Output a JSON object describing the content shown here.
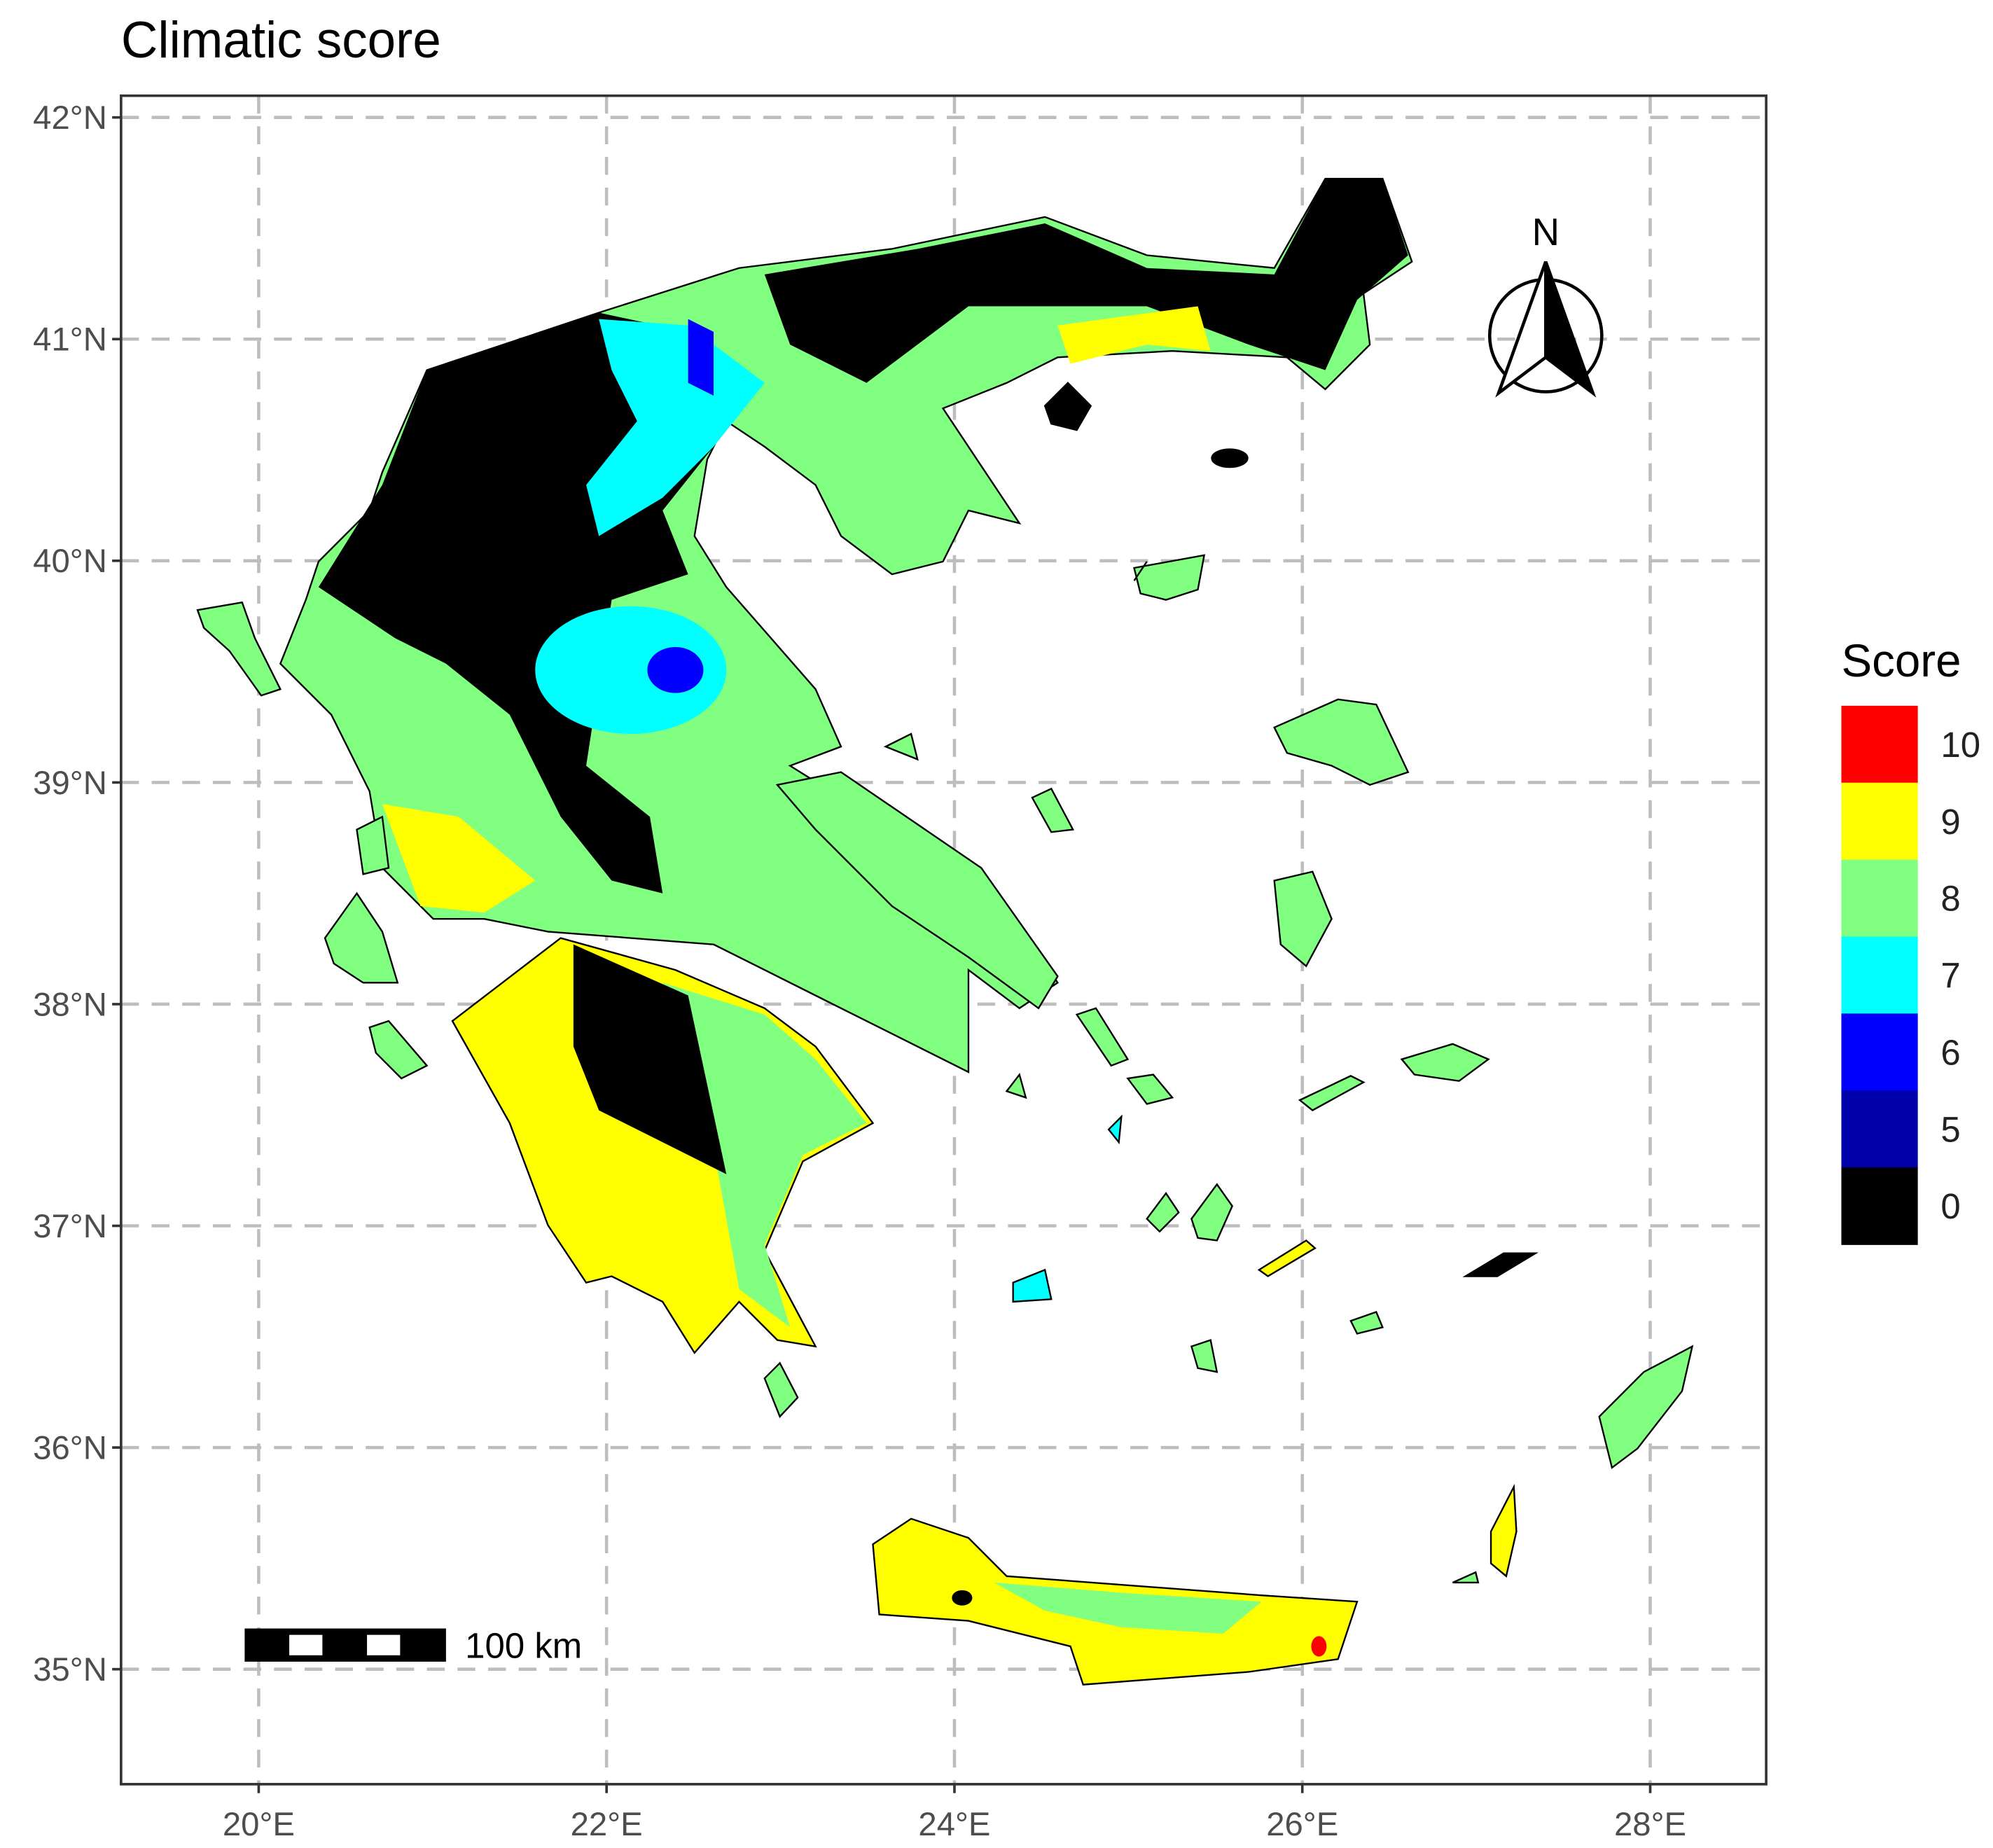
{
  "title": "Climatic score",
  "map": {
    "grid": true,
    "lat_ticks": [
      "42°N",
      "41°N",
      "40°N",
      "39°N",
      "38°N",
      "37°N",
      "36°N",
      "35°N"
    ],
    "lat_values": [
      42,
      41,
      40,
      39,
      38,
      37,
      36,
      35
    ],
    "lon_ticks": [
      "20°E",
      "22°E",
      "24°E",
      "26°E",
      "28°E"
    ],
    "lon_values": [
      20,
      22,
      24,
      26,
      28
    ],
    "xlim": [
      19.2,
      28.7
    ],
    "ylim": [
      34.5,
      42.1
    ],
    "north_arrow_label": "N",
    "scale_bar_label": "100 km"
  },
  "legend": {
    "title": "Score",
    "placement": "right",
    "items": [
      {
        "label": "10",
        "color": "#FF0000"
      },
      {
        "label": "9",
        "color": "#FFFF00"
      },
      {
        "label": "8",
        "color": "#80FF80"
      },
      {
        "label": "7",
        "color": "#00FFFF"
      },
      {
        "label": "6",
        "color": "#0000FF"
      },
      {
        "label": "5",
        "color": "#0000AA"
      },
      {
        "label": "0",
        "color": "#000000"
      }
    ]
  }
}
